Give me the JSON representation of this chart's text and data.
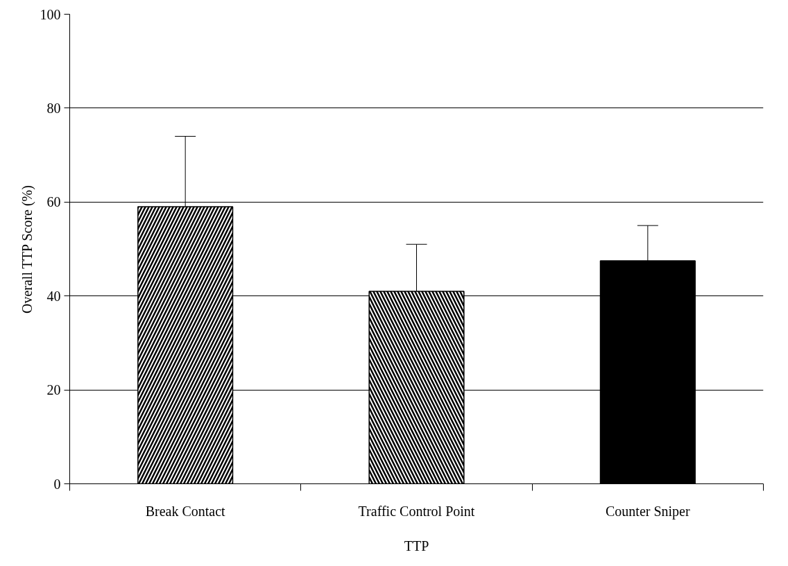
{
  "chart_data": {
    "type": "bar",
    "xlabel": "TTP",
    "ylabel": "Overall TTP Score (%)",
    "categories": [
      "Break Contact",
      "Traffic Control Point",
      "Counter Sniper"
    ],
    "values": [
      59,
      41,
      47.5
    ],
    "errors": [
      15,
      10,
      7.5
    ],
    "colors": [
      "#000000",
      "#000000",
      "#000000"
    ],
    "ylim": [
      0,
      100
    ],
    "yticks": [
      0,
      20,
      40,
      60,
      80,
      100
    ],
    "grid": "y"
  }
}
